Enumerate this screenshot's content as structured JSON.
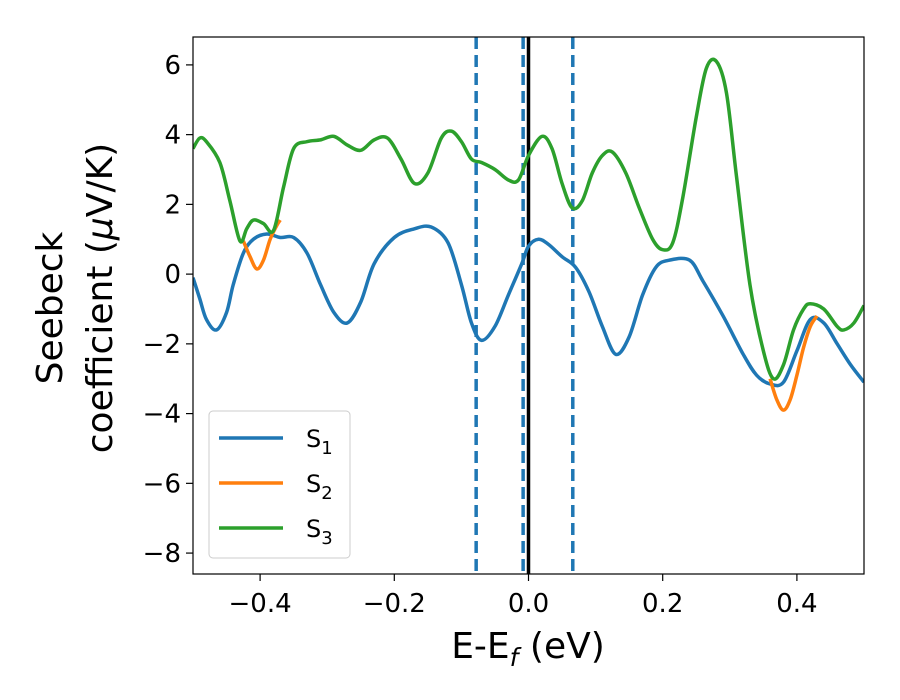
{
  "chart_data": {
    "type": "line",
    "xlabel": {
      "main": "E-E",
      "sub": "f",
      "unit": " (eV)"
    },
    "ylabel": {
      "line1": "Seebeck",
      "line2_pre": "coefficient  (",
      "line2_mu": "μ",
      "line2_post": "V/K)"
    },
    "xlim": [
      -0.5,
      0.5
    ],
    "ylim": [
      -8.6,
      6.8
    ],
    "xticks": [
      {
        "value": -0.4,
        "label": "−0.4"
      },
      {
        "value": -0.2,
        "label": "−0.2"
      },
      {
        "value": 0.0,
        "label": "0.0"
      },
      {
        "value": 0.2,
        "label": "0.2"
      },
      {
        "value": 0.4,
        "label": "0.4"
      }
    ],
    "yticks": [
      {
        "value": -8,
        "label": "−8"
      },
      {
        "value": -6,
        "label": "−6"
      },
      {
        "value": -4,
        "label": "−4"
      },
      {
        "value": -2,
        "label": "−2"
      },
      {
        "value": 0,
        "label": "0"
      },
      {
        "value": 2,
        "label": "2"
      },
      {
        "value": 4,
        "label": "4"
      },
      {
        "value": 6,
        "label": "6"
      }
    ],
    "grid": false,
    "legend_position": "bottom-left",
    "vlines": [
      {
        "x": 0.0,
        "style": "solid",
        "color": "#000000"
      },
      {
        "x": -0.078,
        "style": "dashed",
        "color": "#1f77b4"
      },
      {
        "x": -0.008,
        "style": "dashed",
        "color": "#1f77b4"
      },
      {
        "x": 0.066,
        "style": "dashed",
        "color": "#1f77b4"
      }
    ],
    "series": [
      {
        "name": "S",
        "sub": "1",
        "color": "#1f77b4",
        "points": [
          [
            -0.5,
            -0.1
          ],
          [
            -0.49,
            -0.7
          ],
          [
            -0.48,
            -1.3
          ],
          [
            -0.465,
            -1.6
          ],
          [
            -0.45,
            -1.1
          ],
          [
            -0.44,
            -0.3
          ],
          [
            -0.425,
            0.6
          ],
          [
            -0.41,
            1.0
          ],
          [
            -0.39,
            1.15
          ],
          [
            -0.37,
            1.05
          ],
          [
            -0.35,
            1.05
          ],
          [
            -0.33,
            0.6
          ],
          [
            -0.31,
            -0.3
          ],
          [
            -0.29,
            -1.1
          ],
          [
            -0.27,
            -1.4
          ],
          [
            -0.25,
            -0.8
          ],
          [
            -0.23,
            0.3
          ],
          [
            -0.2,
            1.05
          ],
          [
            -0.17,
            1.3
          ],
          [
            -0.145,
            1.35
          ],
          [
            -0.12,
            0.9
          ],
          [
            -0.1,
            -0.3
          ],
          [
            -0.085,
            -1.4
          ],
          [
            -0.07,
            -1.9
          ],
          [
            -0.05,
            -1.5
          ],
          [
            -0.03,
            -0.6
          ],
          [
            -0.01,
            0.3
          ],
          [
            0.0,
            0.8
          ],
          [
            0.015,
            1.0
          ],
          [
            0.03,
            0.85
          ],
          [
            0.05,
            0.5
          ],
          [
            0.07,
            0.2
          ],
          [
            0.09,
            -0.5
          ],
          [
            0.11,
            -1.5
          ],
          [
            0.13,
            -2.3
          ],
          [
            0.15,
            -1.8
          ],
          [
            0.17,
            -0.6
          ],
          [
            0.19,
            0.2
          ],
          [
            0.21,
            0.4
          ],
          [
            0.24,
            0.4
          ],
          [
            0.26,
            -0.2
          ],
          [
            0.29,
            -1.2
          ],
          [
            0.32,
            -2.3
          ],
          [
            0.34,
            -2.9
          ],
          [
            0.36,
            -3.15
          ],
          [
            0.38,
            -3.1
          ],
          [
            0.4,
            -2.2
          ],
          [
            0.42,
            -1.3
          ],
          [
            0.44,
            -1.4
          ],
          [
            0.46,
            -2.0
          ],
          [
            0.48,
            -2.6
          ],
          [
            0.5,
            -3.1
          ]
        ]
      },
      {
        "name": "S",
        "sub": "2",
        "color": "#ff7f0e",
        "points": [
          [
            -0.425,
            0.95
          ],
          [
            -0.415,
            0.5
          ],
          [
            -0.405,
            0.15
          ],
          [
            -0.395,
            0.4
          ],
          [
            -0.385,
            1.0
          ],
          [
            -0.375,
            1.4
          ],
          [
            -0.37,
            1.55
          ],
          [
            0.36,
            -3.0
          ],
          [
            0.37,
            -3.6
          ],
          [
            0.38,
            -3.9
          ],
          [
            0.39,
            -3.6
          ],
          [
            0.4,
            -2.9
          ],
          [
            0.41,
            -2.1
          ],
          [
            0.42,
            -1.5
          ],
          [
            0.43,
            -1.2
          ]
        ]
      },
      {
        "name": "S",
        "sub": "3",
        "color": "#2ca02c",
        "points": [
          [
            -0.5,
            3.6
          ],
          [
            -0.49,
            3.9
          ],
          [
            -0.48,
            3.8
          ],
          [
            -0.46,
            3.2
          ],
          [
            -0.445,
            2.1
          ],
          [
            -0.43,
            0.95
          ],
          [
            -0.42,
            1.3
          ],
          [
            -0.41,
            1.55
          ],
          [
            -0.395,
            1.45
          ],
          [
            -0.38,
            1.25
          ],
          [
            -0.365,
            2.5
          ],
          [
            -0.35,
            3.6
          ],
          [
            -0.33,
            3.8
          ],
          [
            -0.31,
            3.85
          ],
          [
            -0.29,
            3.95
          ],
          [
            -0.27,
            3.7
          ],
          [
            -0.25,
            3.55
          ],
          [
            -0.23,
            3.85
          ],
          [
            -0.21,
            3.9
          ],
          [
            -0.19,
            3.3
          ],
          [
            -0.17,
            2.6
          ],
          [
            -0.15,
            2.9
          ],
          [
            -0.13,
            3.9
          ],
          [
            -0.115,
            4.1
          ],
          [
            -0.1,
            3.8
          ],
          [
            -0.085,
            3.3
          ],
          [
            -0.07,
            3.2
          ],
          [
            -0.05,
            3.0
          ],
          [
            -0.03,
            2.7
          ],
          [
            -0.015,
            2.7
          ],
          [
            0.0,
            3.4
          ],
          [
            0.02,
            3.95
          ],
          [
            0.035,
            3.6
          ],
          [
            0.05,
            2.6
          ],
          [
            0.065,
            1.9
          ],
          [
            0.08,
            2.1
          ],
          [
            0.095,
            2.9
          ],
          [
            0.11,
            3.4
          ],
          [
            0.125,
            3.5
          ],
          [
            0.145,
            2.9
          ],
          [
            0.165,
            1.9
          ],
          [
            0.185,
            1.0
          ],
          [
            0.2,
            0.7
          ],
          [
            0.215,
            0.9
          ],
          [
            0.23,
            2.2
          ],
          [
            0.25,
            4.5
          ],
          [
            0.265,
            5.9
          ],
          [
            0.28,
            6.1
          ],
          [
            0.295,
            5.2
          ],
          [
            0.31,
            2.8
          ],
          [
            0.33,
            -0.3
          ],
          [
            0.35,
            -2.2
          ],
          [
            0.365,
            -3.0
          ],
          [
            0.38,
            -2.6
          ],
          [
            0.395,
            -1.6
          ],
          [
            0.41,
            -1.0
          ],
          [
            0.42,
            -0.85
          ],
          [
            0.44,
            -1.0
          ],
          [
            0.46,
            -1.5
          ],
          [
            0.47,
            -1.6
          ],
          [
            0.485,
            -1.4
          ],
          [
            0.5,
            -0.9
          ]
        ]
      }
    ]
  }
}
